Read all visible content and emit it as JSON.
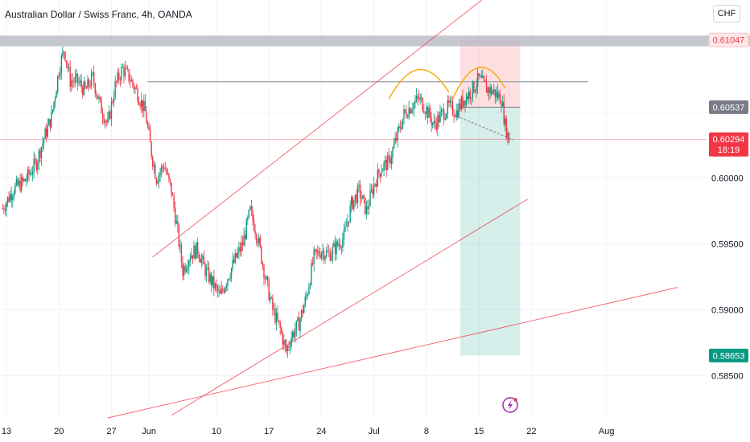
{
  "header": {
    "title": "Australian Dollar / Swiss Franc, 4h, OANDA",
    "currency_button": "CHF"
  },
  "chart_data": {
    "type": "candlestick",
    "symbol": "AUDCHF",
    "ylim": [
      0.5818,
      0.6135
    ],
    "y_ticks": [
      "0.60000",
      "0.59500",
      "0.59000",
      "0.58500"
    ],
    "x_ticks": [
      "13",
      "20",
      "27",
      "Jun",
      "10",
      "17",
      "24",
      "Jul",
      "8",
      "15",
      "22",
      "Aug"
    ],
    "x_tick_days": [
      0,
      7,
      14,
      19,
      28,
      35,
      42,
      49,
      56,
      63,
      70,
      80
    ],
    "price_badges": [
      {
        "label": "0.61047",
        "value": 0.61047,
        "style": "resistance"
      },
      {
        "label": "0.60537",
        "value": 0.60537,
        "style": "entry"
      },
      {
        "label": "0.60294",
        "value": 0.60294,
        "style": "last",
        "sub": "18:19"
      },
      {
        "label": "0.58653",
        "value": 0.58653,
        "style": "target"
      }
    ],
    "levels": {
      "resistance_zone": [
        0.61,
        0.6108
      ],
      "neckline": 0.6073
    },
    "position": {
      "type": "short",
      "entry": 0.60537,
      "stop": 0.61047,
      "target": 0.58653,
      "day_start": 60.5,
      "day_end": 68.5
    },
    "trendlines": [
      {
        "from": [
          19.5,
          0.594
        ],
        "to": [
          73.5,
          0.618
        ]
      },
      {
        "from": [
          22,
          0.582
        ],
        "to": [
          69.5,
          0.5984
        ]
      },
      {
        "from": [
          13.5,
          0.5818
        ],
        "to": [
          89.5,
          0.5917
        ]
      }
    ],
    "head_shoulders": [
      {
        "from": [
          51,
          0.606
        ],
        "peak": [
          55,
          0.6082
        ],
        "to": [
          59,
          0.6065
        ]
      },
      {
        "from": [
          59.5,
          0.606
        ],
        "peak": [
          63,
          0.6083
        ],
        "to": [
          66.5,
          0.6068
        ]
      }
    ],
    "projection": {
      "from": [
        60,
        0.6047
      ],
      "to": [
        67.5,
        0.6029
      ]
    },
    "price_path": [
      [
        -0.5,
        0.5977
      ],
      [
        1,
        0.5992
      ],
      [
        2.5,
        0.5998
      ],
      [
        4,
        0.6012
      ],
      [
        5,
        0.603
      ],
      [
        6,
        0.6046
      ],
      [
        7,
        0.6082
      ],
      [
        7.7,
        0.6098
      ],
      [
        8.5,
        0.6074
      ],
      [
        9.5,
        0.6073
      ],
      [
        10.5,
        0.6066
      ],
      [
        11.5,
        0.6076
      ],
      [
        12.5,
        0.6055
      ],
      [
        13.5,
        0.604
      ],
      [
        14.5,
        0.607
      ],
      [
        15.5,
        0.6083
      ],
      [
        16.5,
        0.6075
      ],
      [
        17.5,
        0.6064
      ],
      [
        18.5,
        0.605
      ],
      [
        19.3,
        0.602
      ],
      [
        20,
        0.6
      ],
      [
        21,
        0.601
      ],
      [
        22,
        0.599
      ],
      [
        22.8,
        0.596
      ],
      [
        23.5,
        0.593
      ],
      [
        24.5,
        0.5942
      ],
      [
        25.5,
        0.5946
      ],
      [
        26.5,
        0.593
      ],
      [
        27.5,
        0.592
      ],
      [
        28.5,
        0.591
      ],
      [
        29.5,
        0.5925
      ],
      [
        30.5,
        0.5938
      ],
      [
        31.5,
        0.595
      ],
      [
        32.5,
        0.5975
      ],
      [
        33.5,
        0.5955
      ],
      [
        34.5,
        0.5925
      ],
      [
        35.5,
        0.59
      ],
      [
        36.5,
        0.5885
      ],
      [
        37.3,
        0.5868
      ],
      [
        38,
        0.588
      ],
      [
        39,
        0.589
      ],
      [
        40,
        0.591
      ],
      [
        41,
        0.594
      ],
      [
        42,
        0.5945
      ],
      [
        43,
        0.5942
      ],
      [
        44,
        0.5948
      ],
      [
        45,
        0.5955
      ],
      [
        46,
        0.598
      ],
      [
        47,
        0.599
      ],
      [
        48,
        0.5975
      ],
      [
        49,
        0.5995
      ],
      [
        50,
        0.6008
      ],
      [
        51,
        0.6012
      ],
      [
        52,
        0.603
      ],
      [
        53,
        0.6048
      ],
      [
        54,
        0.6055
      ],
      [
        55,
        0.606
      ],
      [
        56,
        0.6052
      ],
      [
        57,
        0.604
      ],
      [
        58,
        0.6048
      ],
      [
        59,
        0.6054
      ],
      [
        60,
        0.605
      ],
      [
        61,
        0.606
      ],
      [
        62,
        0.6066
      ],
      [
        63,
        0.6075
      ],
      [
        64,
        0.6068
      ],
      [
        65,
        0.6065
      ],
      [
        66,
        0.606
      ],
      [
        66.5,
        0.604
      ],
      [
        67,
        0.6029
      ]
    ]
  }
}
